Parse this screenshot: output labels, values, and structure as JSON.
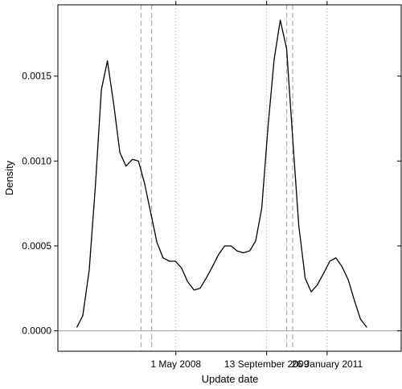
{
  "chart_data": {
    "type": "line",
    "xlabel": "Update date",
    "ylabel": "Density",
    "xlim": [
      -7.2,
      83.8
    ],
    "ylim": [
      -0.00012,
      0.00192
    ],
    "x_ticks": [
      {
        "value": 24,
        "label": "1 May 2008"
      },
      {
        "value": 48,
        "label": "13 September 2009"
      },
      {
        "value": 64,
        "label": "26 January 2011"
      }
    ],
    "y_ticks": [
      {
        "value": 0,
        "label": "0.0000"
      },
      {
        "value": 0.0005,
        "label": "0.0005"
      },
      {
        "value": 0.001,
        "label": "0.0010"
      },
      {
        "value": 0.0015,
        "label": "0.0015"
      }
    ],
    "dotted_vlines": [
      24,
      48,
      64
    ],
    "dashed_vlines": [
      14.8,
      17.6,
      53.3,
      54.9
    ],
    "baseline": 0,
    "series": [
      {
        "x": [
          -2.2,
          -0.6,
          1.1,
          2.7,
          4.3,
          5.9,
          7.6,
          9.2,
          10.8,
          12.5,
          14.1,
          15.7,
          17.4,
          19.0,
          20.6,
          22.3,
          23.9,
          25.5,
          27.1,
          28.8,
          30.4,
          32.0,
          33.7,
          35.3,
          36.9,
          38.6,
          40.2,
          41.8,
          43.5,
          45.1,
          46.7,
          48.4,
          50.0,
          51.6,
          53.3,
          54.9,
          56.5,
          58.2,
          59.8,
          61.4,
          63.1,
          64.7,
          66.3,
          67.9,
          69.6,
          71.2,
          72.8,
          74.5
        ],
        "y": [
          2e-05,
          9e-05,
          0.00036,
          0.00085,
          0.00142,
          0.00159,
          0.00133,
          0.00105,
          0.00097,
          0.00101,
          0.001,
          0.00087,
          0.00069,
          0.00052,
          0.00043,
          0.00041,
          0.00041,
          0.00037,
          0.00029,
          0.00024,
          0.00025,
          0.00031,
          0.00038,
          0.00045,
          0.0005,
          0.0005,
          0.00047,
          0.00046,
          0.00047,
          0.00053,
          0.00072,
          0.00121,
          0.0016,
          0.00183,
          0.00166,
          0.00113,
          0.00062,
          0.00031,
          0.00023,
          0.00027,
          0.00034,
          0.00041,
          0.00043,
          0.00038,
          0.0003,
          0.00018,
          7e-05,
          2e-05
        ]
      }
    ]
  }
}
